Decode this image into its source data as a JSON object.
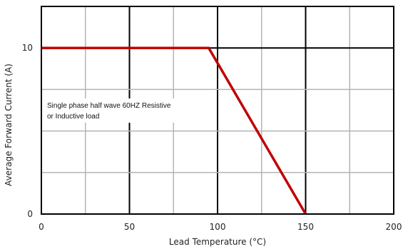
{
  "chart_data": {
    "type": "line",
    "title": "",
    "xlabel": "Lead Temperature (°C)",
    "ylabel": "Average Forward Current (A)",
    "xlim": [
      0,
      200
    ],
    "ylim": [
      0,
      12.5
    ],
    "x_ticks": [
      0,
      50,
      100,
      150,
      200
    ],
    "y_ticks": [
      0,
      10
    ],
    "grid": true,
    "series": [
      {
        "color": "#c00000",
        "x": [
          0,
          95,
          150
        ],
        "y": [
          10,
          10,
          0
        ]
      }
    ],
    "annotation": [
      "Single phase half wave 60HZ Resistive",
      "or Inductive load"
    ]
  }
}
